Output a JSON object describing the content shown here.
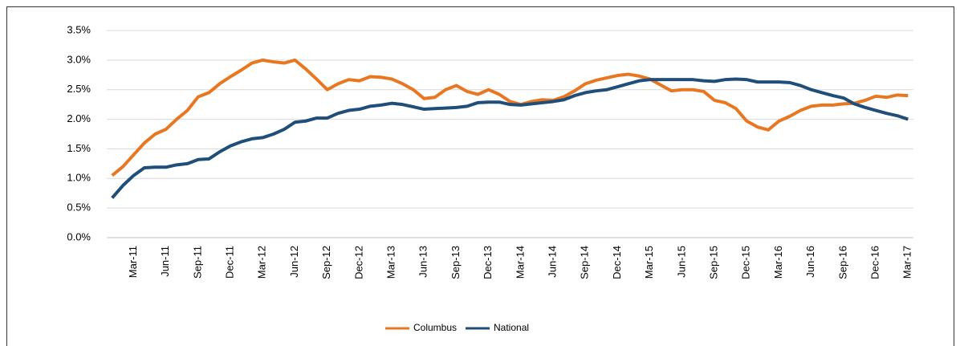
{
  "chart_data": {
    "type": "line",
    "categories": [
      null,
      null,
      "Mar-11",
      null,
      null,
      "Jun-11",
      null,
      null,
      "Sep-11",
      null,
      null,
      "Dec-11",
      null,
      null,
      "Mar-12",
      null,
      null,
      "Jun-12",
      null,
      null,
      "Sep-12",
      null,
      null,
      "Dec-12",
      null,
      null,
      "Mar-13",
      null,
      null,
      "Jun-13",
      null,
      null,
      "Sep-13",
      null,
      null,
      "Dec-13",
      null,
      null,
      "Mar-14",
      null,
      null,
      "Jun-14",
      null,
      null,
      "Sep-14",
      null,
      null,
      "Dec-14",
      null,
      null,
      "Mar-15",
      null,
      null,
      "Jun-15",
      null,
      null,
      "Sep-15",
      null,
      null,
      "Dec-15",
      null,
      null,
      "Mar-16",
      null,
      null,
      "Jun-16",
      null,
      null,
      "Sep-16",
      null,
      null,
      "Dec-16",
      null,
      null,
      "Mar-17"
    ],
    "series": [
      {
        "name": "Columbus",
        "color": "#e87722",
        "values": [
          1.05,
          1.2,
          1.4,
          1.6,
          1.75,
          1.83,
          2.0,
          2.15,
          2.38,
          2.45,
          2.6,
          2.72,
          2.83,
          2.95,
          3.0,
          2.97,
          2.95,
          3.0,
          2.85,
          2.68,
          2.5,
          2.6,
          2.67,
          2.65,
          2.72,
          2.71,
          2.68,
          2.6,
          2.5,
          2.35,
          2.37,
          2.5,
          2.57,
          2.47,
          2.42,
          2.5,
          2.42,
          2.3,
          2.25,
          2.3,
          2.33,
          2.32,
          2.38,
          2.48,
          2.6,
          2.66,
          2.7,
          2.74,
          2.76,
          2.73,
          2.68,
          2.58,
          2.48,
          2.5,
          2.5,
          2.47,
          2.32,
          2.28,
          2.18,
          1.97,
          1.87,
          1.82,
          1.97,
          2.05,
          2.15,
          2.22,
          2.24,
          2.24,
          2.26,
          2.27,
          2.32,
          2.39,
          2.37,
          2.41,
          2.4
        ]
      },
      {
        "name": "National",
        "color": "#1f4e79",
        "values": [
          0.67,
          0.88,
          1.05,
          1.18,
          1.19,
          1.19,
          1.23,
          1.25,
          1.32,
          1.33,
          1.45,
          1.55,
          1.62,
          1.67,
          1.69,
          1.75,
          1.83,
          1.95,
          1.97,
          2.02,
          2.02,
          2.1,
          2.15,
          2.17,
          2.22,
          2.24,
          2.27,
          2.25,
          2.21,
          2.17,
          2.18,
          2.19,
          2.2,
          2.22,
          2.28,
          2.29,
          2.29,
          2.25,
          2.24,
          2.26,
          2.28,
          2.3,
          2.33,
          2.4,
          2.45,
          2.48,
          2.5,
          2.55,
          2.6,
          2.65,
          2.67,
          2.67,
          2.67,
          2.67,
          2.67,
          2.65,
          2.64,
          2.67,
          2.68,
          2.67,
          2.63,
          2.63,
          2.63,
          2.62,
          2.57,
          2.5,
          2.45,
          2.4,
          2.36,
          2.26,
          2.2,
          2.15,
          2.1,
          2.06,
          2.0
        ]
      }
    ],
    "ylim": [
      0,
      3.5
    ],
    "yticks": [
      {
        "value": 0,
        "label": "0.0%"
      },
      {
        "value": 0.5,
        "label": "0.5%"
      },
      {
        "value": 1,
        "label": "1.0%"
      },
      {
        "value": 1.5,
        "label": "1.5%"
      },
      {
        "value": 2,
        "label": "2.0%"
      },
      {
        "value": 2.5,
        "label": "2.5%"
      },
      {
        "value": 3,
        "label": "3.0%"
      },
      {
        "value": 3.5,
        "label": "3.5%"
      }
    ],
    "grid": true,
    "legend": "bottom"
  }
}
